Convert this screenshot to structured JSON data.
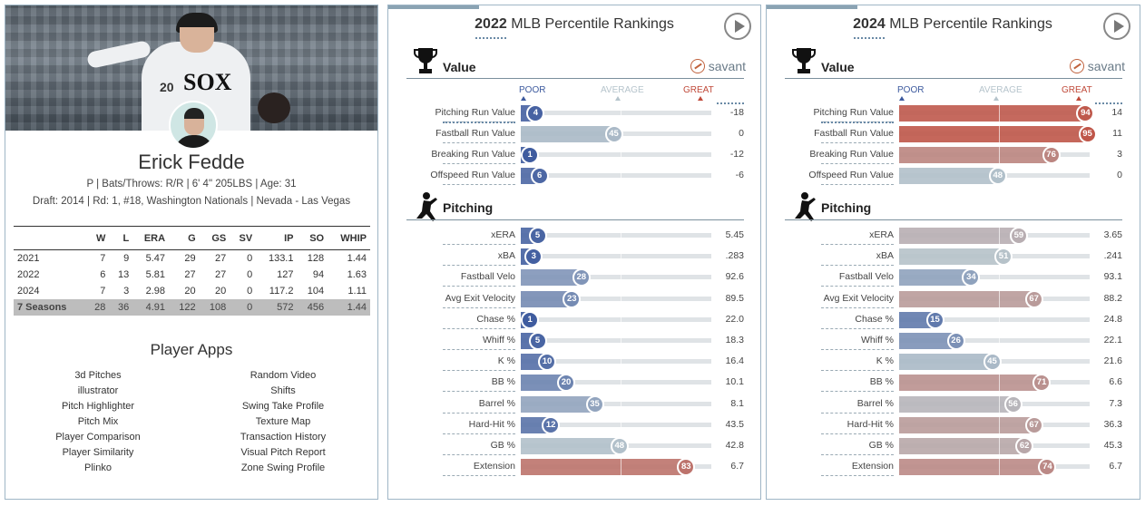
{
  "player": {
    "name": "Erick Fedde",
    "info": "P | Bats/Throws: R/R | 6' 4\" 205LBS | Age: 31",
    "draft_prefix": "Draft: ",
    "draft_year": "2014",
    "draft_mid": " | Rd: 1, #18, ",
    "draft_team": "Washington Nationals",
    "draft_suffix": " | Nevada - Las Vegas",
    "photo_logo": "SOX",
    "photo_number": "20",
    "stats": {
      "headers": [
        "",
        "W",
        "L",
        "ERA",
        "G",
        "GS",
        "SV",
        "IP",
        "SO",
        "WHIP"
      ],
      "rows": [
        [
          "2021",
          "7",
          "9",
          "5.47",
          "29",
          "27",
          "0",
          "133.1",
          "128",
          "1.44"
        ],
        [
          "2022",
          "6",
          "13",
          "5.81",
          "27",
          "27",
          "0",
          "127",
          "94",
          "1.63"
        ],
        [
          "2024",
          "7",
          "3",
          "2.98",
          "20",
          "20",
          "0",
          "117.2",
          "104",
          "1.11"
        ],
        [
          "7 Seasons",
          "28",
          "36",
          "4.91",
          "122",
          "108",
          "0",
          "572",
          "456",
          "1.44"
        ]
      ]
    },
    "apps_title": "Player Apps",
    "apps_left": [
      "3d Pitches",
      "illustrator",
      "Pitch Highlighter",
      "Pitch Mix",
      "Player Comparison",
      "Player Similarity",
      "Plinko"
    ],
    "apps_right": [
      "Random Video",
      "Shifts",
      "Swing Take Profile",
      "Texture Map",
      "Transaction History",
      "Visual Pitch Report",
      "Zone Swing Profile"
    ]
  },
  "scale": {
    "poor": "POOR",
    "average": "AVERAGE",
    "great": "GREAT"
  },
  "savant_label": "savant",
  "colors": {
    "poor": "#3d5a9e",
    "average": "#b6c4cc",
    "great": "#c04a3a"
  },
  "panels": [
    {
      "year": "2022",
      "title_rest": " MLB Percentile Rankings",
      "value_title": "Value",
      "pitching_title": "Pitching",
      "value_rows": [
        {
          "label": "Pitching Run Value",
          "pct": 4,
          "val": "-18"
        },
        {
          "label": "Fastball Run Value",
          "pct": 45,
          "val": "0"
        },
        {
          "label": "Breaking Run Value",
          "pct": 1,
          "val": "-12"
        },
        {
          "label": "Offspeed Run Value",
          "pct": 6,
          "val": "-6"
        }
      ],
      "pitching_rows": [
        {
          "label": "xERA",
          "pct": 5,
          "val": "5.45"
        },
        {
          "label": "xBA",
          "pct": 3,
          "val": ".283"
        },
        {
          "label": "Fastball Velo",
          "pct": 28,
          "val": "92.6"
        },
        {
          "label": "Avg Exit Velocity",
          "pct": 23,
          "val": "89.5"
        },
        {
          "label": "Chase %",
          "pct": 1,
          "val": "22.0"
        },
        {
          "label": "Whiff %",
          "pct": 5,
          "val": "18.3"
        },
        {
          "label": "K %",
          "pct": 10,
          "val": "16.4"
        },
        {
          "label": "BB %",
          "pct": 20,
          "val": "10.1"
        },
        {
          "label": "Barrel %",
          "pct": 35,
          "val": "8.1"
        },
        {
          "label": "Hard-Hit %",
          "pct": 12,
          "val": "43.5"
        },
        {
          "label": "GB %",
          "pct": 48,
          "val": "42.8"
        },
        {
          "label": "Extension",
          "pct": 83,
          "val": "6.7"
        }
      ]
    },
    {
      "year": "2024",
      "title_rest": " MLB Percentile Rankings",
      "value_title": "Value",
      "pitching_title": "Pitching",
      "value_rows": [
        {
          "label": "Pitching Run Value",
          "pct": 94,
          "val": "14"
        },
        {
          "label": "Fastball Run Value",
          "pct": 95,
          "val": "11"
        },
        {
          "label": "Breaking Run Value",
          "pct": 76,
          "val": "3"
        },
        {
          "label": "Offspeed Run Value",
          "pct": 48,
          "val": "0"
        }
      ],
      "pitching_rows": [
        {
          "label": "xERA",
          "pct": 59,
          "val": "3.65"
        },
        {
          "label": "xBA",
          "pct": 51,
          "val": ".241"
        },
        {
          "label": "Fastball Velo",
          "pct": 34,
          "val": "93.1"
        },
        {
          "label": "Avg Exit Velocity",
          "pct": 67,
          "val": "88.2"
        },
        {
          "label": "Chase %",
          "pct": 15,
          "val": "24.8"
        },
        {
          "label": "Whiff %",
          "pct": 26,
          "val": "22.1"
        },
        {
          "label": "K %",
          "pct": 45,
          "val": "21.6"
        },
        {
          "label": "BB %",
          "pct": 71,
          "val": "6.6"
        },
        {
          "label": "Barrel %",
          "pct": 56,
          "val": "7.3"
        },
        {
          "label": "Hard-Hit %",
          "pct": 67,
          "val": "36.3"
        },
        {
          "label": "GB %",
          "pct": 62,
          "val": "45.3"
        },
        {
          "label": "Extension",
          "pct": 74,
          "val": "6.7"
        }
      ]
    }
  ]
}
